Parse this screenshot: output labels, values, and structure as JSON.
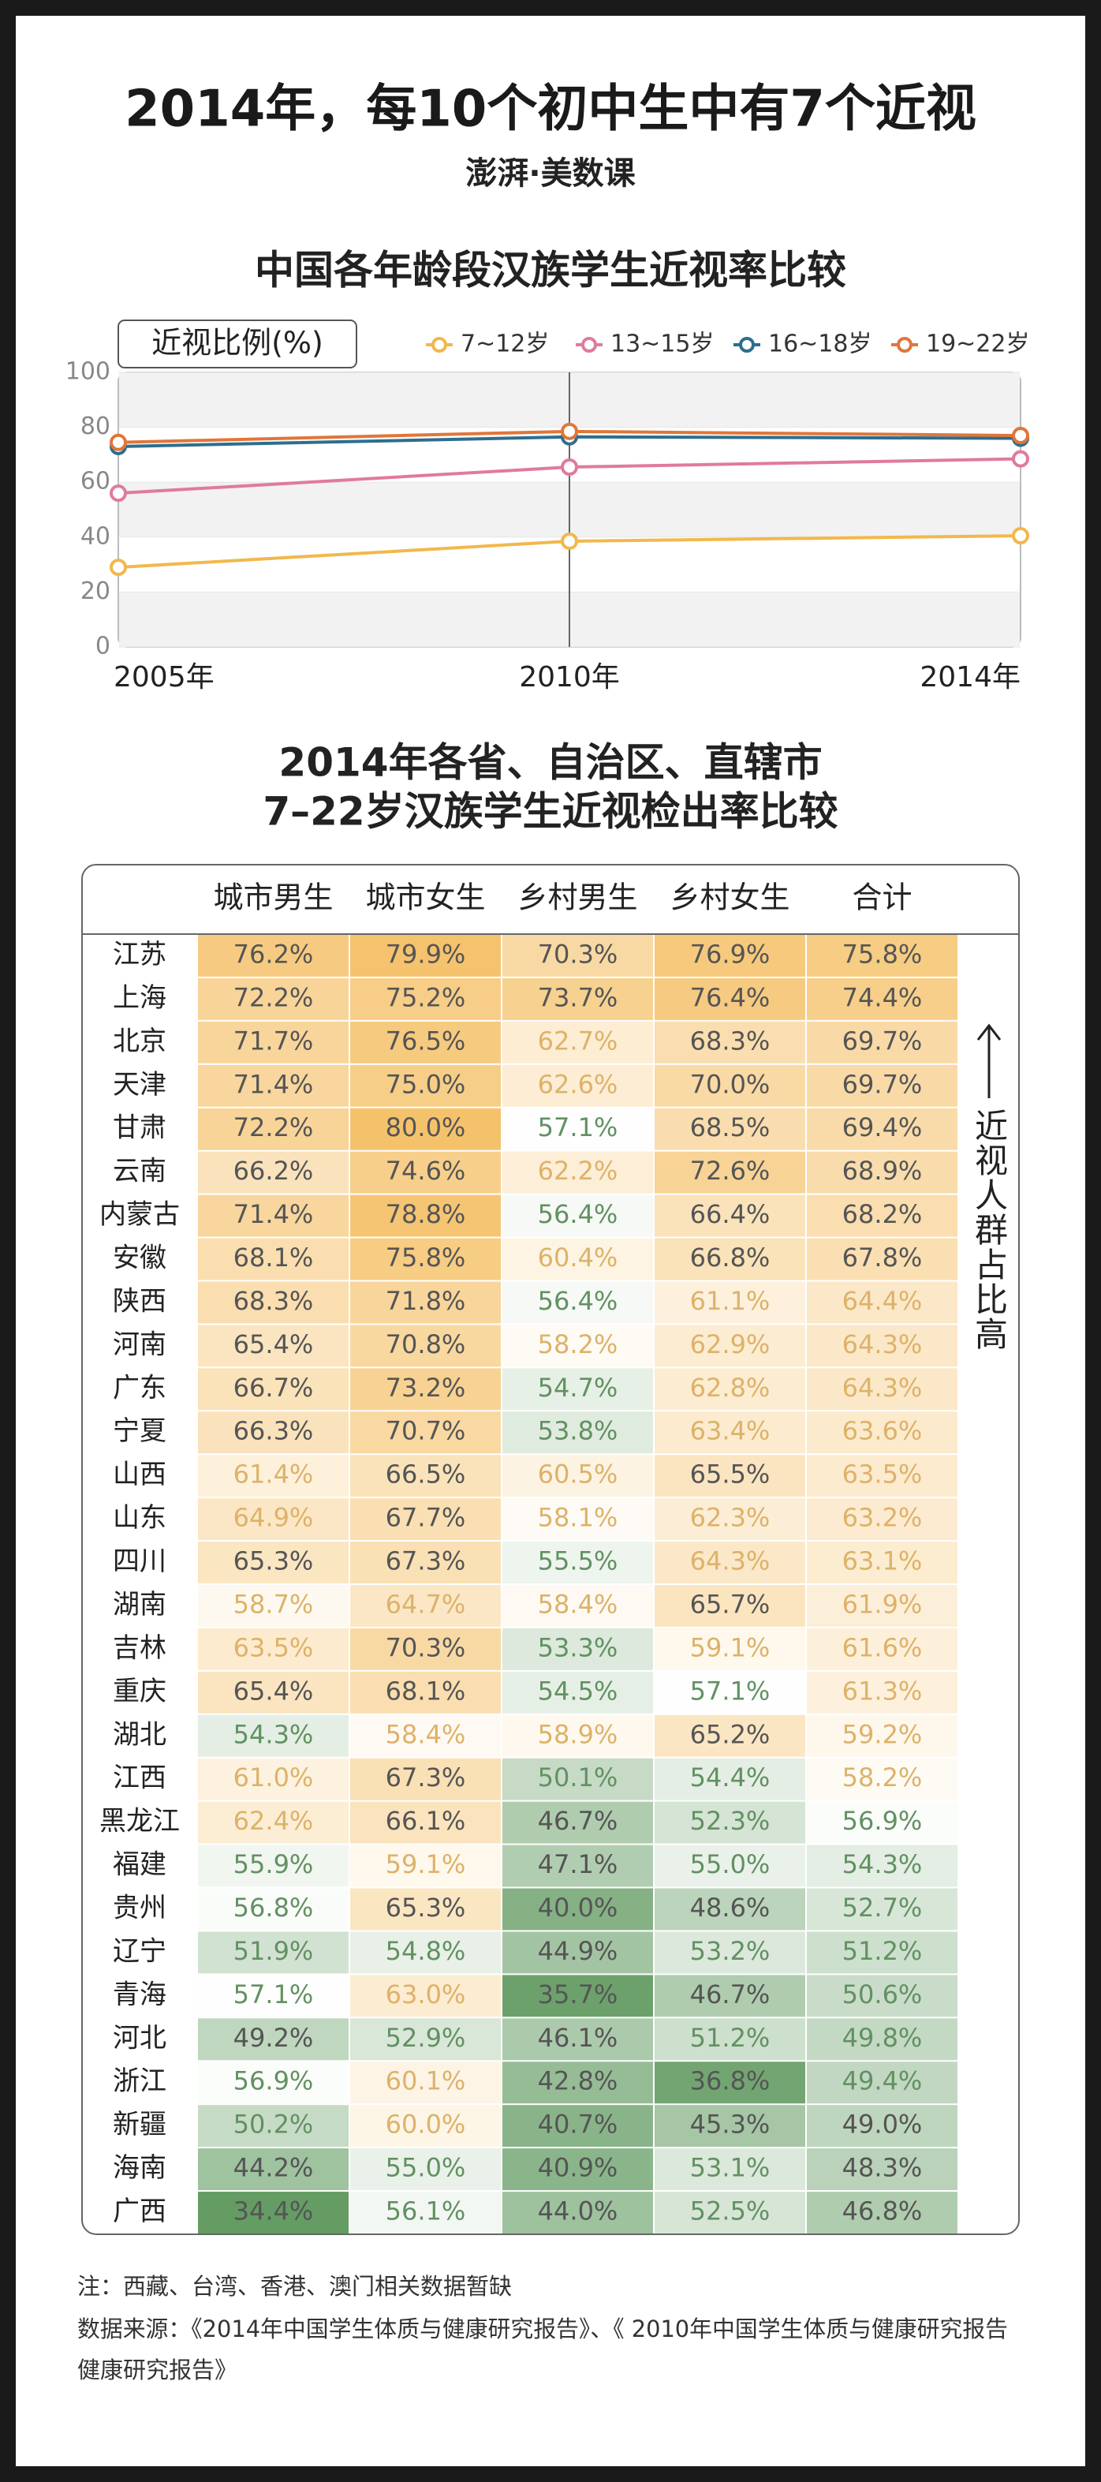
{
  "header": {
    "title": "2014年，每10个初中生中有7个近视",
    "logo": "澎湃·美数课"
  },
  "chart_data": {
    "type": "line",
    "title": "中国各年龄段汉族学生近视率比较",
    "y_label": "近视比例(%)",
    "categories": [
      "2005年",
      "2010年",
      "2014年"
    ],
    "series": [
      {
        "name": "7~12岁",
        "color": "#f2b84b",
        "values": [
          29,
          38.5,
          40.5
        ]
      },
      {
        "name": "13~15岁",
        "color": "#e07b9a",
        "values": [
          56,
          65.5,
          68.5
        ]
      },
      {
        "name": "16~18岁",
        "color": "#2d6e8e",
        "values": [
          73,
          76.5,
          76
        ]
      },
      {
        "name": "19~22岁",
        "color": "#e0763a",
        "values": [
          74.5,
          78.5,
          77
        ]
      }
    ],
    "ylim": [
      0,
      100
    ],
    "yticks": [
      0,
      20,
      40,
      60,
      80,
      100
    ],
    "grid": true,
    "legend": "top-right"
  },
  "table": {
    "title_lines": [
      "2014年各省、自治区、直辖市",
      "7–22岁汉族学生近视检出率比较"
    ],
    "columns": [
      "城市男生",
      "城市女生",
      "乡村男生",
      "乡村女生",
      "合计"
    ],
    "side_note": "近视人群占比高",
    "rows": [
      [
        "江苏",
        "76.2%",
        "79.9%",
        "70.3%",
        "76.9%",
        "75.8%"
      ],
      [
        "上海",
        "72.2%",
        "75.2%",
        "73.7%",
        "76.4%",
        "74.4%"
      ],
      [
        "北京",
        "71.7%",
        "76.5%",
        "62.7%",
        "68.3%",
        "69.7%"
      ],
      [
        "天津",
        "71.4%",
        "75.0%",
        "62.6%",
        "70.0%",
        "69.7%"
      ],
      [
        "甘肃",
        "72.2%",
        "80.0%",
        "57.1%",
        "68.5%",
        "69.4%"
      ],
      [
        "云南",
        "66.2%",
        "74.6%",
        "62.2%",
        "72.6%",
        "68.9%"
      ],
      [
        "内蒙古",
        "71.4%",
        "78.8%",
        "56.4%",
        "66.4%",
        "68.2%"
      ],
      [
        "安徽",
        "68.1%",
        "75.8%",
        "60.4%",
        "66.8%",
        "67.8%"
      ],
      [
        "陕西",
        "68.3%",
        "71.8%",
        "56.4%",
        "61.1%",
        "64.4%"
      ],
      [
        "河南",
        "65.4%",
        "70.8%",
        "58.2%",
        "62.9%",
        "64.3%"
      ],
      [
        "广东",
        "66.7%",
        "73.2%",
        "54.7%",
        "62.8%",
        "64.3%"
      ],
      [
        "宁夏",
        "66.3%",
        "70.7%",
        "53.8%",
        "63.4%",
        "63.6%"
      ],
      [
        "山西",
        "61.4%",
        "66.5%",
        "60.5%",
        "65.5%",
        "63.5%"
      ],
      [
        "山东",
        "64.9%",
        "67.7%",
        "58.1%",
        "62.3%",
        "63.2%"
      ],
      [
        "四川",
        "65.3%",
        "67.3%",
        "55.5%",
        "64.3%",
        "63.1%"
      ],
      [
        "湖南",
        "58.7%",
        "64.7%",
        "58.4%",
        "65.7%",
        "61.9%"
      ],
      [
        "吉林",
        "63.5%",
        "70.3%",
        "53.3%",
        "59.1%",
        "61.6%"
      ],
      [
        "重庆",
        "65.4%",
        "68.1%",
        "54.5%",
        "57.1%",
        "61.3%"
      ],
      [
        "湖北",
        "54.3%",
        "58.4%",
        "58.9%",
        "65.2%",
        "59.2%"
      ],
      [
        "江西",
        "61.0%",
        "67.3%",
        "50.1%",
        "54.4%",
        "58.2%"
      ],
      [
        "黑龙江",
        "62.4%",
        "66.1%",
        "46.7%",
        "52.3%",
        "56.9%"
      ],
      [
        "福建",
        "55.9%",
        "59.1%",
        "47.1%",
        "55.0%",
        "54.3%"
      ],
      [
        "贵州",
        "56.8%",
        "65.3%",
        "40.0%",
        "48.6%",
        "52.7%"
      ],
      [
        "辽宁",
        "51.9%",
        "54.8%",
        "44.9%",
        "53.2%",
        "51.2%"
      ],
      [
        "青海",
        "57.1%",
        "63.0%",
        "35.7%",
        "46.7%",
        "50.6%"
      ],
      [
        "河北",
        "49.2%",
        "52.9%",
        "46.1%",
        "51.2%",
        "49.8%"
      ],
      [
        "浙江",
        "56.9%",
        "60.1%",
        "42.8%",
        "36.8%",
        "49.4%"
      ],
      [
        "新疆",
        "50.2%",
        "60.0%",
        "40.7%",
        "45.3%",
        "49.0%"
      ],
      [
        "海南",
        "44.2%",
        "55.0%",
        "40.9%",
        "53.1%",
        "48.3%"
      ],
      [
        "广西",
        "34.4%",
        "56.1%",
        "44.0%",
        "52.5%",
        "46.8%"
      ]
    ]
  },
  "notes": {
    "note": "注：西藏、台湾、香港、澳门相关数据暂缺",
    "source_lines": [
      "数据来源：《2014年中国学生体质与健康研究报告》、《 2010年中国学生体质与健康研究报告",
      "健康研究报告》"
    ]
  }
}
